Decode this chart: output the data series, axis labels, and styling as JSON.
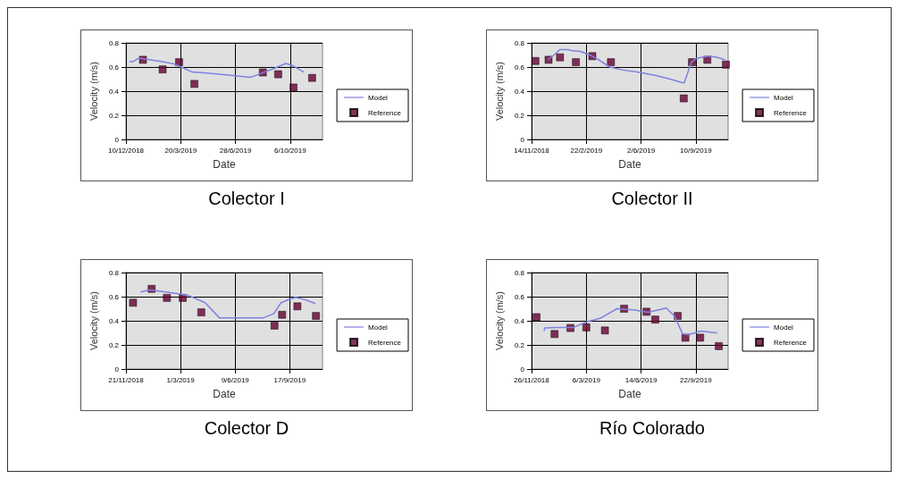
{
  "chart_data": [
    {
      "type": "line",
      "title": "Colector I",
      "xlabel": "Date",
      "ylabel": "Velocity (m/s)",
      "xlim": [
        "2018-12-10",
        "2019-12-04"
      ],
      "xticks": [
        {
          "value": "2018-12-10",
          "label": "10/12/2018"
        },
        {
          "value": "2019-03-20",
          "label": "20/3/2019"
        },
        {
          "value": "2019-06-28",
          "label": "28/6/2019"
        },
        {
          "value": "2019-10-06",
          "label": "6/10/2019"
        }
      ],
      "ylim": [
        0,
        0.8
      ],
      "yticks": [
        0,
        0.2,
        0.4,
        0.6,
        0.8
      ],
      "grid": true,
      "legend": "right",
      "line_style": "solid",
      "series": [
        {
          "name": "Model",
          "marker": "none",
          "color": "#8080e0",
          "x": [
            "2018-12-17",
            "2018-12-23",
            "2019-01-03",
            "2019-01-16",
            "2019-02-15",
            "2019-03-08",
            "2019-03-21",
            "2019-04-09",
            "2019-05-07",
            "2019-06-11",
            "2019-07-24",
            "2019-08-01",
            "2019-08-18",
            "2019-09-05",
            "2019-09-28",
            "2019-10-09",
            "2019-10-30"
          ],
          "values": [
            0.645,
            0.645,
            0.675,
            0.665,
            0.645,
            0.625,
            0.6,
            0.56,
            0.55,
            0.535,
            0.515,
            0.525,
            0.555,
            0.585,
            0.63,
            0.615,
            0.56
          ]
        },
        {
          "name": "Reference",
          "type": "scatter",
          "marker": "square",
          "color": "#660033",
          "x": [
            "2019-01-10",
            "2019-02-15",
            "2019-03-17",
            "2019-04-14",
            "2019-08-17",
            "2019-09-14",
            "2019-10-12",
            "2019-11-15"
          ],
          "values": [
            0.66,
            0.58,
            0.64,
            0.46,
            0.555,
            0.54,
            0.43,
            0.51
          ]
        }
      ]
    },
    {
      "type": "line",
      "title": "Colector II",
      "xlabel": "Date",
      "ylabel": "Velocity (m/s)",
      "xlim": [
        "2018-11-14",
        "2019-11-08"
      ],
      "xticks": [
        {
          "value": "2018-11-14",
          "label": "14/11/2018"
        },
        {
          "value": "2019-02-22",
          "label": "22/2/2019"
        },
        {
          "value": "2019-06-02",
          "label": "2/6/2019"
        },
        {
          "value": "2019-09-10",
          "label": "10/9/2019"
        }
      ],
      "ylim": [
        0,
        0.8
      ],
      "yticks": [
        0,
        0.2,
        0.4,
        0.6,
        0.8
      ],
      "grid": true,
      "legend": "right",
      "line_style": "solid",
      "series": [
        {
          "name": "Model",
          "marker": "none",
          "color": "#8080e0",
          "x": [
            "2018-12-15",
            "2018-12-25",
            "2019-01-05",
            "2019-01-20",
            "2019-01-27",
            "2019-02-11",
            "2019-02-28",
            "2019-03-13",
            "2019-04-06",
            "2019-04-30",
            "2019-05-31",
            "2019-06-29",
            "2019-07-25",
            "2019-08-16",
            "2019-08-20",
            "2019-09-02",
            "2019-09-10",
            "2019-10-03",
            "2019-10-20",
            "2019-11-02"
          ],
          "values": [
            0.665,
            0.7,
            0.745,
            0.745,
            0.735,
            0.73,
            0.7,
            0.67,
            0.6,
            0.575,
            0.555,
            0.53,
            0.5,
            0.47,
            0.47,
            0.64,
            0.67,
            0.69,
            0.68,
            0.66
          ]
        },
        {
          "name": "Reference",
          "type": "scatter",
          "marker": "square",
          "color": "#660033",
          "x": [
            "2018-11-21",
            "2018-12-15",
            "2019-01-05",
            "2019-02-03",
            "2019-03-05",
            "2019-04-08",
            "2019-08-19",
            "2019-09-03",
            "2019-10-01",
            "2019-11-04"
          ],
          "values": [
            0.65,
            0.66,
            0.68,
            0.64,
            0.69,
            0.64,
            0.34,
            0.64,
            0.66,
            0.62
          ]
        }
      ]
    },
    {
      "type": "line",
      "title": "Colector D",
      "xlabel": "Date",
      "ylabel": "Velocity (m/s)",
      "xlim": [
        "2018-11-21",
        "2019-11-16"
      ],
      "xticks": [
        {
          "value": "2018-11-21",
          "label": "21/11/2018"
        },
        {
          "value": "2019-03-01",
          "label": "1/3/2019"
        },
        {
          "value": "2019-06-09",
          "label": "9/6/2019"
        },
        {
          "value": "2019-09-17",
          "label": "17/9/2019"
        }
      ],
      "ylim": [
        0,
        0.8
      ],
      "yticks": [
        0,
        0.2,
        0.4,
        0.6,
        0.8
      ],
      "grid": true,
      "legend": "right",
      "line_style": "solid",
      "series": [
        {
          "name": "Model",
          "marker": "none",
          "color": "#8080e0",
          "x": [
            "2018-12-19",
            "2019-01-04",
            "2019-01-30",
            "2019-03-02",
            "2019-03-15",
            "2019-04-15",
            "2019-05-11",
            "2019-07-31",
            "2019-08-19",
            "2019-09-01",
            "2019-09-17",
            "2019-09-28",
            "2019-10-15",
            "2019-11-02"
          ],
          "values": [
            0.64,
            0.655,
            0.64,
            0.62,
            0.61,
            0.55,
            0.425,
            0.425,
            0.46,
            0.55,
            0.58,
            0.595,
            0.575,
            0.545
          ]
        },
        {
          "name": "Reference",
          "type": "scatter",
          "marker": "square",
          "color": "#660033",
          "x": [
            "2018-12-04",
            "2019-01-07",
            "2019-02-04",
            "2019-03-05",
            "2019-04-08",
            "2019-08-20",
            "2019-09-03",
            "2019-10-01",
            "2019-11-04"
          ],
          "values": [
            0.55,
            0.665,
            0.59,
            0.59,
            0.47,
            0.36,
            0.45,
            0.52,
            0.44
          ]
        }
      ]
    },
    {
      "type": "line",
      "title": "Río Colorado",
      "xlabel": "Date",
      "ylabel": "Velocity (m/s)",
      "xlim": [
        "2018-11-26",
        "2019-11-20"
      ],
      "xticks": [
        {
          "value": "2018-11-26",
          "label": "26/11/2018"
        },
        {
          "value": "2019-03-06",
          "label": "6/3/2019"
        },
        {
          "value": "2019-06-14",
          "label": "14/6/2019"
        },
        {
          "value": "2019-09-22",
          "label": "22/9/2019"
        }
      ],
      "ylim": [
        0,
        0.8
      ],
      "yticks": [
        0,
        0.2,
        0.4,
        0.6,
        0.8
      ],
      "grid": true,
      "legend": "right",
      "line_style": "solid",
      "series": [
        {
          "name": "Model",
          "marker": "none",
          "color": "#8080e0",
          "x": [
            "2018-12-19",
            "2018-12-20",
            "2019-01-11",
            "2019-02-11",
            "2019-03-06",
            "2019-03-31",
            "2019-05-01",
            "2019-05-31",
            "2019-06-27",
            "2019-07-30",
            "2019-08-14",
            "2019-08-29",
            "2019-09-09",
            "2019-10-01",
            "2019-10-30"
          ],
          "values": [
            0.32,
            0.34,
            0.345,
            0.345,
            0.39,
            0.42,
            0.5,
            0.49,
            0.47,
            0.505,
            0.44,
            0.29,
            0.285,
            0.315,
            0.3
          ]
        },
        {
          "name": "Reference",
          "type": "scatter",
          "marker": "square",
          "color": "#660033",
          "x": [
            "2018-12-05",
            "2019-01-07",
            "2019-02-05",
            "2019-03-06",
            "2019-04-09",
            "2019-05-14",
            "2019-06-24",
            "2019-07-10",
            "2019-08-20",
            "2019-09-03",
            "2019-09-30",
            "2019-11-03"
          ],
          "values": [
            0.43,
            0.29,
            0.34,
            0.345,
            0.32,
            0.5,
            0.475,
            0.41,
            0.44,
            0.26,
            0.26,
            0.19
          ]
        }
      ]
    }
  ]
}
